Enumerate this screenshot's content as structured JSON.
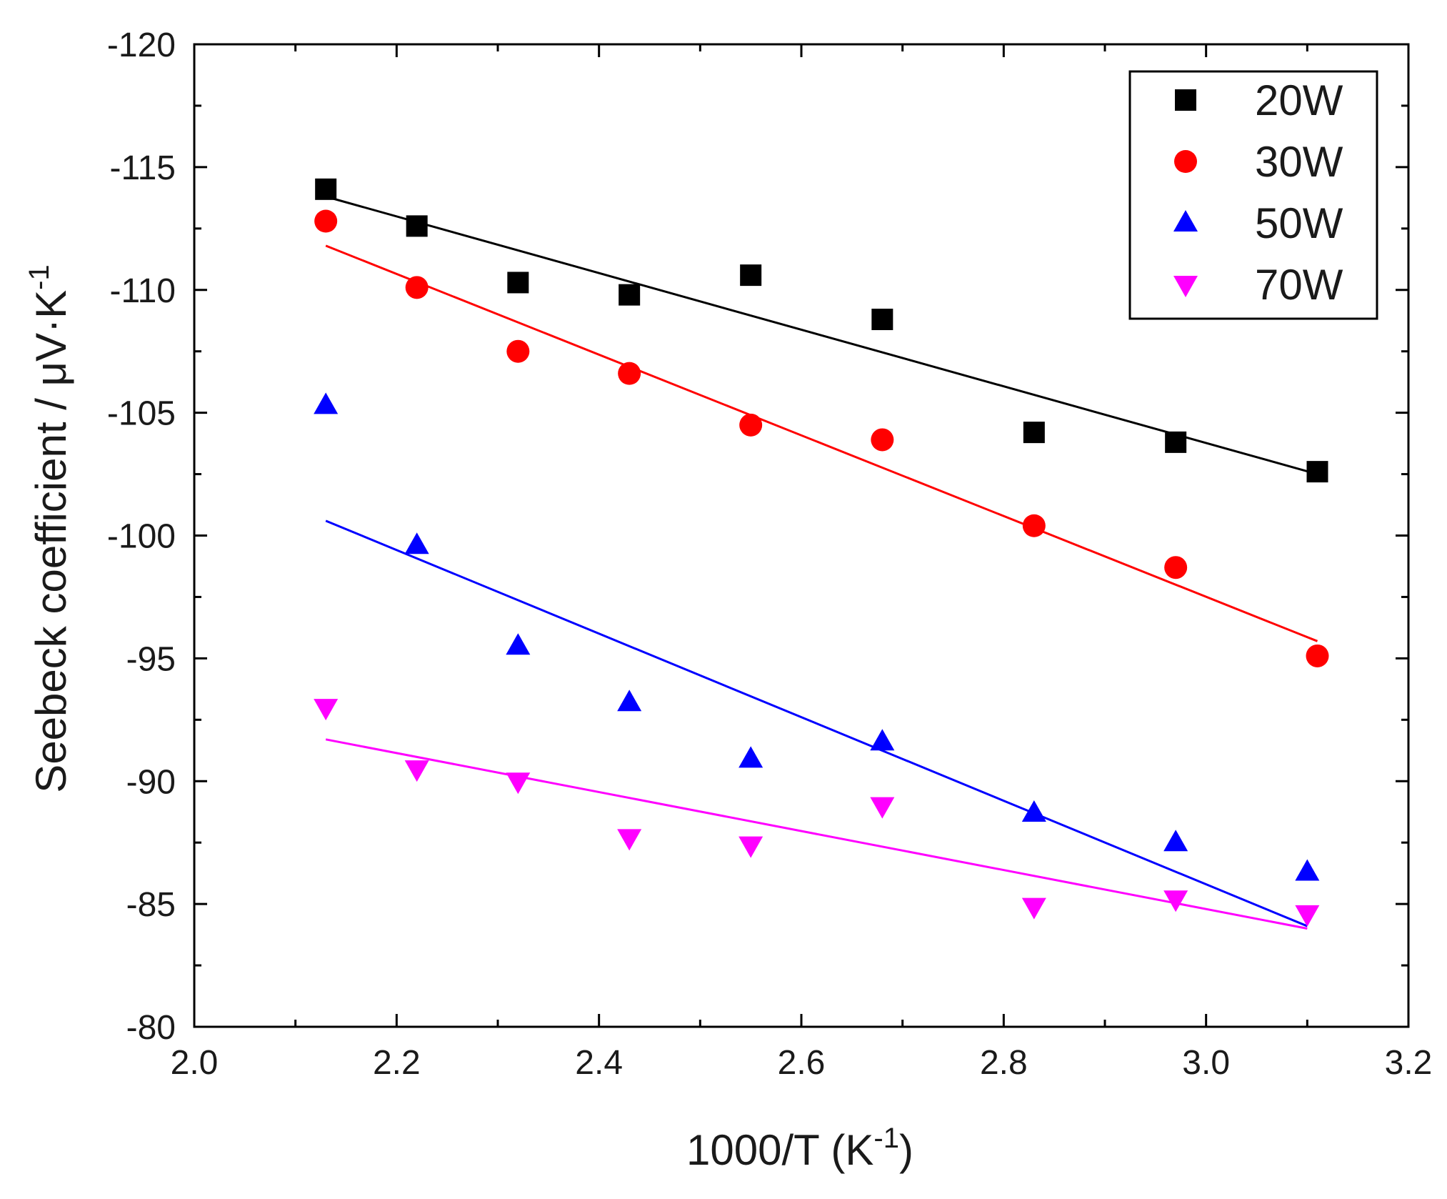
{
  "chart_data": {
    "type": "scatter",
    "title": "",
    "xlabel": "1000/T (K",
    "xlabel_sup": "-1",
    "xlabel_end": ")",
    "ylabel": "Seebeck coefficient / μV·K",
    "ylabel_sup": "-1",
    "xlim": [
      2.0,
      3.2
    ],
    "ylim": [
      -80,
      -120
    ],
    "x_ticks": [
      2.0,
      2.2,
      2.4,
      2.6,
      2.8,
      3.0,
      3.2
    ],
    "x_tick_labels": [
      "2.0",
      "2.2",
      "2.4",
      "2.6",
      "2.8",
      "3.0",
      "3.2"
    ],
    "y_ticks": [
      -80,
      -85,
      -90,
      -95,
      -100,
      -105,
      -110,
      -115,
      -120
    ],
    "y_tick_labels": [
      "-80",
      "-85",
      "-90",
      "-95",
      "-100",
      "-105",
      "-110",
      "-115",
      "-120"
    ],
    "grid": false,
    "legend_position": "top-right",
    "series": [
      {
        "name": "20W",
        "marker": "square",
        "color": "#000000",
        "x": [
          2.13,
          2.22,
          2.32,
          2.43,
          2.55,
          2.68,
          2.83,
          2.97,
          3.11
        ],
        "y": [
          -114.1,
          -112.6,
          -110.3,
          -109.8,
          -110.6,
          -108.8,
          -104.2,
          -103.8,
          -102.6
        ],
        "fit": {
          "x": [
            2.13,
            3.11
          ],
          "y": [
            -113.8,
            -102.5
          ]
        }
      },
      {
        "name": "30W",
        "marker": "circle",
        "color": "#ff0000",
        "x": [
          2.13,
          2.22,
          2.32,
          2.43,
          2.55,
          2.68,
          2.83,
          2.97,
          3.11
        ],
        "y": [
          -112.8,
          -110.1,
          -107.5,
          -106.6,
          -104.5,
          -103.9,
          -100.4,
          -98.7,
          -95.1
        ],
        "fit": {
          "x": [
            2.13,
            3.11
          ],
          "y": [
            -111.8,
            -95.7
          ]
        }
      },
      {
        "name": "50W",
        "marker": "triangle-up",
        "color": "#0000ff",
        "x": [
          2.13,
          2.22,
          2.32,
          2.43,
          2.55,
          2.68,
          2.83,
          2.97,
          3.1
        ],
        "y": [
          -105.3,
          -99.6,
          -95.5,
          -93.2,
          -90.9,
          -91.6,
          -88.7,
          -87.5,
          -86.3
        ],
        "fit": {
          "x": [
            2.13,
            3.1
          ],
          "y": [
            -100.6,
            -84.1
          ]
        }
      },
      {
        "name": "70W",
        "marker": "triangle-down",
        "color": "#ff00ff",
        "x": [
          2.13,
          2.22,
          2.32,
          2.43,
          2.55,
          2.68,
          2.83,
          2.97,
          3.1
        ],
        "y": [
          -93.0,
          -90.5,
          -90.0,
          -87.7,
          -87.4,
          -89.0,
          -84.9,
          -85.2,
          -84.6
        ],
        "fit": {
          "x": [
            2.13,
            3.1
          ],
          "y": [
            -91.7,
            -84.0
          ]
        }
      }
    ]
  }
}
